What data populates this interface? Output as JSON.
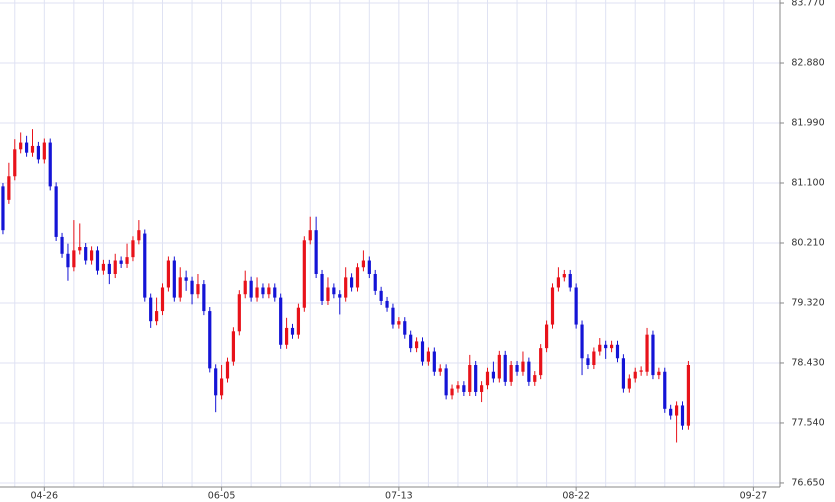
{
  "chart_data": {
    "type": "candlestick",
    "categories": [
      null,
      null,
      null,
      null,
      null,
      null,
      null,
      "04-26",
      null,
      null,
      null,
      null,
      null,
      null,
      null,
      null,
      null,
      null,
      null,
      null,
      null,
      null,
      null,
      null,
      null,
      null,
      null,
      null,
      null,
      null,
      null,
      null,
      null,
      null,
      null,
      null,
      null,
      "06-05",
      null,
      null,
      null,
      null,
      null,
      null,
      null,
      null,
      null,
      null,
      null,
      null,
      null,
      null,
      null,
      null,
      null,
      null,
      null,
      null,
      null,
      null,
      null,
      null,
      null,
      null,
      null,
      null,
      null,
      "07-13",
      null,
      null,
      null,
      null,
      null,
      null,
      null,
      null,
      null,
      null,
      null,
      null,
      null,
      null,
      null,
      null,
      null,
      null,
      null,
      null,
      null,
      null,
      null,
      null,
      null,
      null,
      null,
      null,
      null,
      "08-22",
      null,
      null,
      null,
      null,
      null,
      null,
      null,
      null,
      null,
      null,
      null,
      null,
      null,
      null,
      null,
      null,
      null,
      null,
      null,
      null,
      null,
      null,
      null,
      null,
      null,
      null,
      null,
      null,
      null,
      "09-27",
      null,
      null,
      null,
      null
    ],
    "open": [
      81.05,
      80.85,
      81.2,
      81.6,
      81.7,
      81.55,
      81.65,
      81.45,
      81.7,
      81.05,
      80.3,
      80.05,
      79.85,
      80.1,
      80.15,
      79.95,
      80.1,
      79.8,
      79.9,
      79.75,
      79.95,
      79.9,
      80.0,
      80.25,
      80.35,
      79.4,
      79.05,
      79.2,
      79.55,
      79.95,
      79.4,
      79.7,
      79.65,
      79.45,
      79.6,
      79.2,
      78.35,
      77.95,
      78.2,
      78.45,
      78.9,
      79.45,
      79.65,
      79.4,
      79.55,
      79.45,
      79.55,
      79.4,
      78.7,
      78.95,
      78.85,
      79.25,
      80.25,
      80.4,
      79.75,
      79.35,
      79.55,
      79.45,
      79.4,
      79.7,
      79.55,
      79.85,
      79.95,
      79.75,
      79.5,
      79.35,
      79.25,
      79.0,
      79.05,
      78.85,
      78.65,
      78.75,
      78.45,
      78.6,
      78.3,
      78.35,
      77.95,
      78.05,
      78.1,
      78.0,
      78.4,
      78.0,
      78.1,
      78.3,
      78.2,
      78.55,
      78.15,
      78.4,
      78.3,
      78.45,
      78.15,
      78.25,
      78.65,
      79.0,
      79.55,
      79.7,
      79.75,
      79.55,
      79.0,
      78.5,
      78.4,
      78.6,
      78.7,
      78.65,
      78.7,
      78.5,
      78.05,
      78.2,
      78.3,
      78.3,
      78.85,
      78.25,
      78.3,
      77.75,
      77.65,
      77.8,
      77.5,
      null,
      null,
      null,
      null,
      null,
      null,
      null,
      null,
      null,
      null,
      null,
      null,
      null,
      null,
      null
    ],
    "high": [
      81.1,
      81.4,
      81.75,
      81.85,
      81.8,
      81.9,
      81.71,
      81.76,
      81.76,
      81.11,
      80.36,
      80.2,
      80.55,
      80.5,
      80.21,
      80.16,
      80.16,
      79.96,
      79.96,
      80.05,
      80.01,
      80.2,
      80.31,
      80.55,
      80.41,
      79.46,
      79.4,
      79.61,
      80.01,
      80.01,
      79.85,
      79.8,
      79.71,
      79.75,
      79.66,
      79.26,
      78.41,
      78.4,
      78.51,
      78.96,
      79.51,
      79.8,
      79.71,
      79.7,
      79.61,
      79.61,
      79.61,
      79.46,
      79.1,
      79.01,
      79.31,
      80.31,
      80.6,
      80.6,
      79.81,
      79.7,
      79.61,
      79.51,
      79.85,
      79.76,
      79.91,
      80.1,
      80.01,
      79.81,
      79.56,
      79.41,
      79.31,
      79.11,
      79.11,
      78.91,
      78.81,
      78.81,
      78.66,
      78.66,
      78.41,
      78.41,
      78.11,
      78.16,
      78.16,
      78.55,
      78.46,
      78.16,
      78.36,
      78.45,
      78.61,
      78.61,
      78.46,
      78.46,
      78.6,
      78.51,
      78.31,
      78.71,
      79.06,
      79.61,
      79.85,
      79.81,
      79.81,
      79.61,
      79.06,
      78.56,
      78.66,
      78.8,
      78.76,
      78.76,
      78.76,
      78.56,
      78.26,
      78.36,
      78.38,
      78.95,
      78.91,
      78.36,
      78.36,
      77.81,
      77.86,
      77.86,
      78.46,
      null,
      null,
      null,
      null,
      null,
      null,
      null,
      null,
      null,
      null,
      null,
      null,
      null,
      null,
      null
    ],
    "low": [
      80.34,
      80.79,
      81.14,
      81.54,
      81.49,
      81.49,
      81.39,
      81.39,
      80.99,
      80.24,
      79.99,
      79.65,
      79.79,
      80.04,
      79.89,
      79.89,
      79.74,
      79.74,
      79.6,
      79.69,
      79.84,
      79.84,
      79.94,
      80.19,
      79.34,
      78.95,
      78.99,
      79.14,
      79.49,
      79.34,
      79.34,
      79.5,
      79.3,
      79.39,
      79.14,
      78.29,
      77.7,
      77.89,
      78.14,
      78.39,
      78.84,
      79.39,
      79.34,
      79.34,
      79.39,
      79.39,
      79.34,
      78.64,
      78.64,
      78.79,
      78.79,
      79.19,
      80.19,
      79.69,
      79.29,
      79.29,
      79.39,
      79.15,
      79.34,
      79.49,
      79.49,
      79.79,
      79.69,
      79.44,
      79.29,
      79.19,
      78.94,
      78.94,
      78.79,
      78.59,
      78.59,
      78.39,
      78.39,
      78.24,
      78.24,
      77.89,
      77.89,
      77.99,
      77.94,
      77.94,
      77.94,
      77.85,
      78.04,
      78.14,
      78.14,
      78.09,
      78.09,
      78.24,
      78.24,
      78.09,
      78.09,
      78.19,
      78.59,
      78.94,
      79.49,
      79.64,
      79.49,
      78.94,
      78.25,
      78.34,
      78.34,
      78.54,
      78.49,
      78.59,
      78.44,
      77.99,
      77.99,
      78.14,
      78.24,
      78.24,
      78.19,
      78.19,
      77.69,
      77.59,
      77.25,
      77.44,
      77.44,
      null,
      null,
      null,
      null,
      null,
      null,
      null,
      null,
      null,
      null,
      null,
      null,
      null,
      null,
      null
    ],
    "close": [
      80.4,
      81.2,
      81.6,
      81.7,
      81.55,
      81.65,
      81.45,
      81.7,
      81.05,
      80.3,
      80.05,
      79.85,
      80.1,
      80.15,
      79.95,
      80.1,
      79.8,
      79.9,
      79.75,
      79.95,
      79.9,
      80.0,
      80.25,
      80.4,
      79.4,
      79.05,
      79.2,
      79.55,
      79.95,
      79.4,
      79.7,
      79.65,
      79.45,
      79.6,
      79.2,
      78.35,
      77.95,
      78.2,
      78.45,
      78.9,
      79.45,
      79.65,
      79.4,
      79.55,
      79.45,
      79.55,
      79.4,
      78.7,
      78.95,
      78.85,
      79.25,
      80.25,
      80.4,
      79.75,
      79.35,
      79.55,
      79.45,
      79.4,
      79.7,
      79.55,
      79.85,
      79.95,
      79.75,
      79.5,
      79.35,
      79.25,
      79.0,
      79.05,
      78.85,
      78.65,
      78.75,
      78.45,
      78.6,
      78.3,
      78.35,
      77.95,
      78.05,
      78.1,
      78.0,
      78.4,
      78.0,
      78.1,
      78.3,
      78.2,
      78.55,
      78.15,
      78.4,
      78.3,
      78.45,
      78.15,
      78.25,
      78.65,
      79.0,
      79.55,
      79.7,
      79.75,
      79.55,
      79.0,
      78.5,
      78.4,
      78.6,
      78.7,
      78.65,
      78.7,
      78.5,
      78.05,
      78.2,
      78.3,
      78.32,
      78.85,
      78.25,
      78.3,
      77.75,
      77.65,
      77.8,
      77.5,
      78.4,
      null,
      null,
      null,
      null,
      null,
      null,
      null,
      null,
      null,
      null,
      null,
      null,
      null,
      null,
      null
    ],
    "up_color": "#e8121a",
    "down_color": "#1414d6",
    "ylim": [
      76.59,
      83.815
    ],
    "yticks": [
      {
        "value": 76.65,
        "label": "76.650"
      },
      {
        "value": 77.54,
        "label": "77.540"
      },
      {
        "value": 78.43,
        "label": "78.430"
      },
      {
        "value": 79.32,
        "label": "79.320"
      },
      {
        "value": 80.21,
        "label": "80.210"
      },
      {
        "value": 81.1,
        "label": "81.100"
      },
      {
        "value": 81.99,
        "label": "81.990"
      },
      {
        "value": 82.88,
        "label": "82.880"
      },
      {
        "value": 83.77,
        "label": "83.770"
      }
    ],
    "grid": true
  }
}
